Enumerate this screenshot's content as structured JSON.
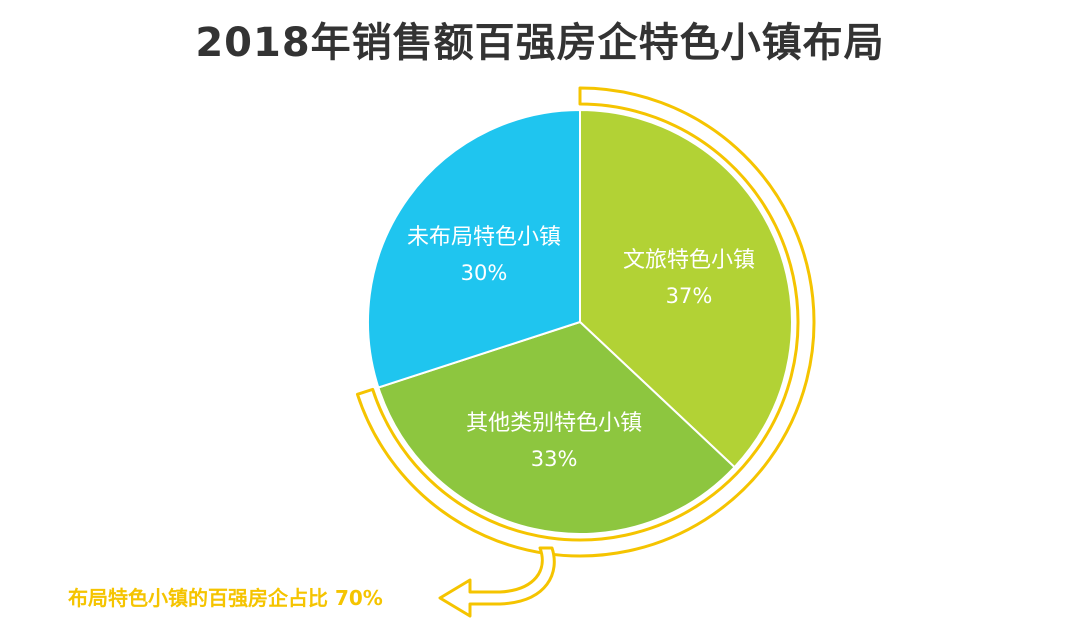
{
  "title": "2018年销售额百强房企特色小镇布局",
  "chart_data": {
    "type": "pie",
    "slices": [
      {
        "label": "文旅特色小镇",
        "value": 37,
        "value_label": "37%",
        "color": "#b2d235"
      },
      {
        "label": "其他类别特色小镇",
        "value": 33,
        "value_label": "33%",
        "color": "#8dc63f"
      },
      {
        "label": "未布局特色小镇",
        "value": 30,
        "value_label": "30%",
        "color": "#1fc5ef"
      }
    ],
    "start": "12 o'clock",
    "direction": "clockwise"
  },
  "callout": {
    "text": "布局特色小镇的百强房企占比 70%",
    "value": 70,
    "color": "#f5c400"
  }
}
